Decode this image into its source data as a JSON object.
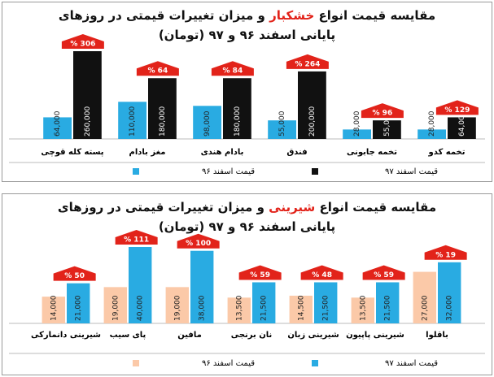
{
  "chart_data": [
    {
      "type": "bar",
      "title": [
        "مقایسه قیمت انواع",
        "خشکبار",
        "و میزان تغییرات قیمتی در روزهای"
      ],
      "subtitle": "پایانی اسفند ۹۶ و ۹۷ (تومان)",
      "categories": [
        "تخمه کدو",
        "تخمه جابونی",
        "فندق",
        "بادام هندی",
        "مغز بادام",
        "پسته کله قوچی"
      ],
      "series": [
        {
          "name": "قیمت اسفند ۹۶",
          "color": "#29abe2",
          "values": [
            28000,
            28000,
            55000,
            98000,
            110000,
            64000
          ],
          "value_labels": [
            "28,000",
            "28,000",
            "55,000",
            "98,000",
            "110,000",
            "64,000"
          ]
        },
        {
          "name": "قیمت اسفند ۹۷",
          "color": "#111111",
          "values": [
            64000,
            55000,
            200000,
            180000,
            180000,
            260000
          ],
          "value_labels": [
            "64,000",
            "55,000",
            "200,000",
            "180,000",
            "180,000",
            "260,000"
          ]
        }
      ],
      "changes": {
        "color": "#e2231a",
        "values": [
          129,
          96,
          264,
          84,
          64,
          306
        ],
        "value_labels": [
          "% 129",
          "% 96",
          "% 264",
          "% 84",
          "% 64",
          "% 306"
        ]
      }
    },
    {
      "type": "bar",
      "title": [
        "مقایسه قیمت انواع",
        "شیرینی",
        "و میزان تغییرات قیمتی در روزهای"
      ],
      "subtitle": "پایانی اسفند ۹۶ و ۹۷ (تومان)",
      "categories": [
        "باقلوا",
        "شیرینی پاپیون",
        "شیرینی زبان",
        "نان برنجی",
        "مافین",
        "پای سیب",
        "شیرینی دانمارکی"
      ],
      "series": [
        {
          "name": "قیمت اسفند ۹۶",
          "color": "#fbc9a8",
          "values": [
            27000,
            13500,
            14500,
            13500,
            19000,
            19000,
            14000
          ],
          "value_labels": [
            "27,000",
            "13,500",
            "14,500",
            "13,500",
            "19,000",
            "19,000",
            "14,000"
          ]
        },
        {
          "name": "قیمت اسفند ۹۷",
          "color": "#29abe2",
          "values": [
            32000,
            21500,
            21500,
            21500,
            38000,
            40000,
            21000
          ],
          "value_labels": [
            "32,000",
            "21,500",
            "21,500",
            "21,500",
            "38,000",
            "40,000",
            "21,000"
          ]
        }
      ],
      "changes": {
        "color": "#e2231a",
        "values": [
          19,
          59,
          48,
          59,
          100,
          111,
          50
        ],
        "value_labels": [
          "% 19",
          "% 59",
          "% 48",
          "% 59",
          "% 100",
          "% 111",
          "% 50"
        ]
      }
    }
  ]
}
